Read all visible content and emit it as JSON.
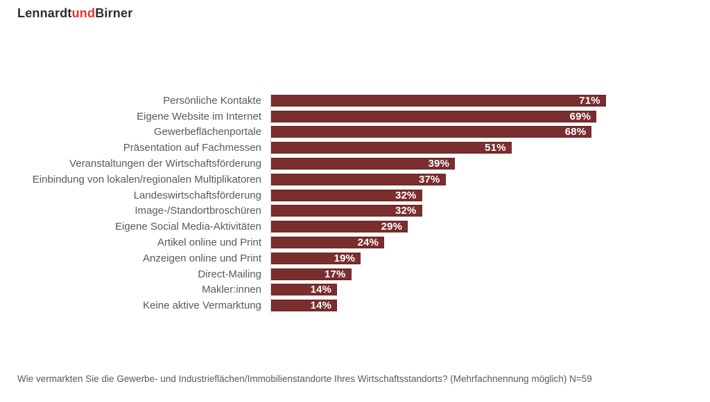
{
  "logo": {
    "part1": "Lennardt",
    "part2": "und",
    "part3": "Birner"
  },
  "chart_data": {
    "type": "bar",
    "orientation": "horizontal",
    "title": "",
    "xlabel": "",
    "ylabel": "",
    "xlim": [
      0,
      100
    ],
    "grid": false,
    "legend": "none",
    "value_suffix": "%",
    "categories": [
      "Persönliche Kontakte",
      "Eigene Website im Internet",
      "Gewerbeflächenportale",
      "Präsentation auf Fachmessen",
      "Veranstaltungen der Wirtschaftsförderung",
      "Einbindung von lokalen/regionalen Multiplikatoren",
      "Landeswirtschaftsförderung",
      "Image-/Standortbroschüren",
      "Eigene Social Media-Aktivitäten",
      "Artikel online und Print",
      "Anzeigen online und Print",
      "Direct-Mailing",
      "Makler:innen",
      "Keine aktive Vermarktung"
    ],
    "values": [
      71,
      69,
      68,
      51,
      39,
      37,
      32,
      32,
      29,
      24,
      19,
      17,
      14,
      14
    ],
    "value_labels": [
      "71%",
      "69%",
      "68%",
      "51%",
      "39%",
      "37%",
      "32%",
      "32%",
      "29%",
      "24%",
      "19%",
      "17%",
      "14%",
      "14%"
    ],
    "colors": {
      "bar_fill": "#7b2e2e",
      "bar_border": "#672222",
      "value_label": "#ffffff",
      "category_label": "#595959",
      "axis_line": "#d9d9d9",
      "logo_dark": "#2d2d2d",
      "logo_red": "#e5332a"
    }
  },
  "footer": {
    "note": "Wie vermarkten Sie die Gewerbe- und Industrieflächen/Immobilienstandorte Ihres Wirtschaftsstandorts? (Mehrfachnennung möglich) N=59"
  }
}
